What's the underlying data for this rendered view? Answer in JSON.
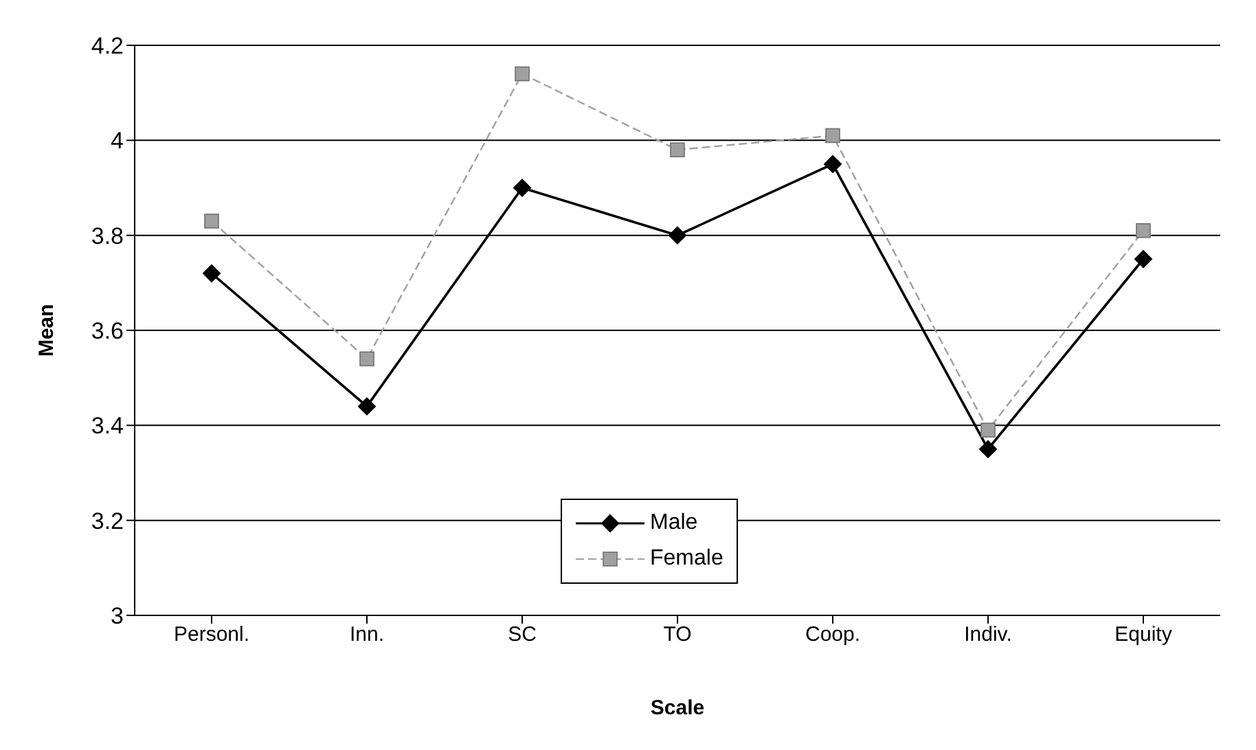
{
  "chart_data": {
    "type": "line",
    "xlabel": "Scale",
    "ylabel": "Mean",
    "categories": [
      "Personl.",
      "Inn.",
      "SC",
      "TO",
      "Coop.",
      "Indiv.",
      "Equity"
    ],
    "series": [
      {
        "name": "Male",
        "color": "#000000",
        "marker": "diamond",
        "line_style": "solid",
        "values": [
          3.72,
          3.44,
          3.9,
          3.8,
          3.95,
          3.35,
          3.75
        ]
      },
      {
        "name": "Female",
        "color": "#a0a0a0",
        "marker": "square",
        "line_style": "dashed",
        "values": [
          3.83,
          3.54,
          4.14,
          3.98,
          4.01,
          3.39,
          3.81
        ]
      }
    ],
    "ylim": [
      3,
      4.2
    ],
    "yticks": [
      3,
      3.2,
      3.4,
      3.6,
      3.8,
      4,
      4.2
    ],
    "grid": "y",
    "legend": "bottom"
  }
}
